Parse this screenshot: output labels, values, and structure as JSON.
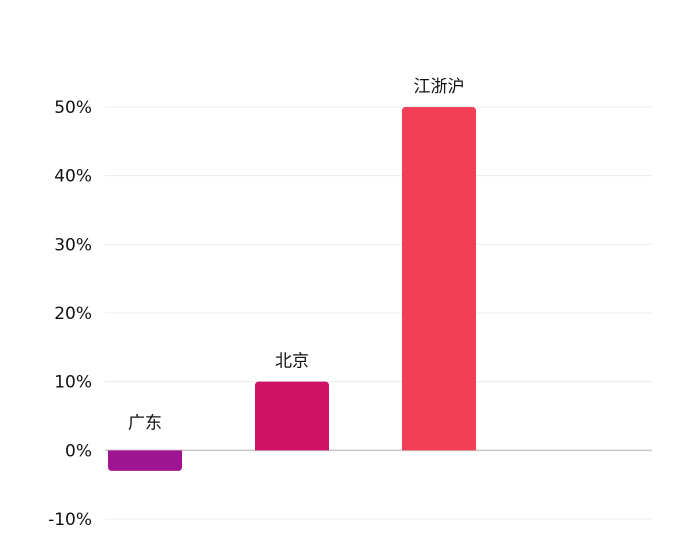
{
  "chart_data": {
    "type": "bar",
    "title": "",
    "xlabel": "",
    "ylabel": "",
    "categories": [
      "广东",
      "北京",
      "江浙沪"
    ],
    "values": [
      -3,
      10,
      50
    ],
    "colors": [
      "#9e1491",
      "#d01266",
      "#f23f55"
    ],
    "ylim": [
      -10,
      50
    ],
    "yticks": [
      50,
      40,
      30,
      20,
      10,
      0,
      -10
    ],
    "ytick_labels": [
      "50%",
      "40%",
      "30%",
      "20%",
      "10%",
      "0%",
      "-10%"
    ],
    "grid": true,
    "legend": "none"
  }
}
